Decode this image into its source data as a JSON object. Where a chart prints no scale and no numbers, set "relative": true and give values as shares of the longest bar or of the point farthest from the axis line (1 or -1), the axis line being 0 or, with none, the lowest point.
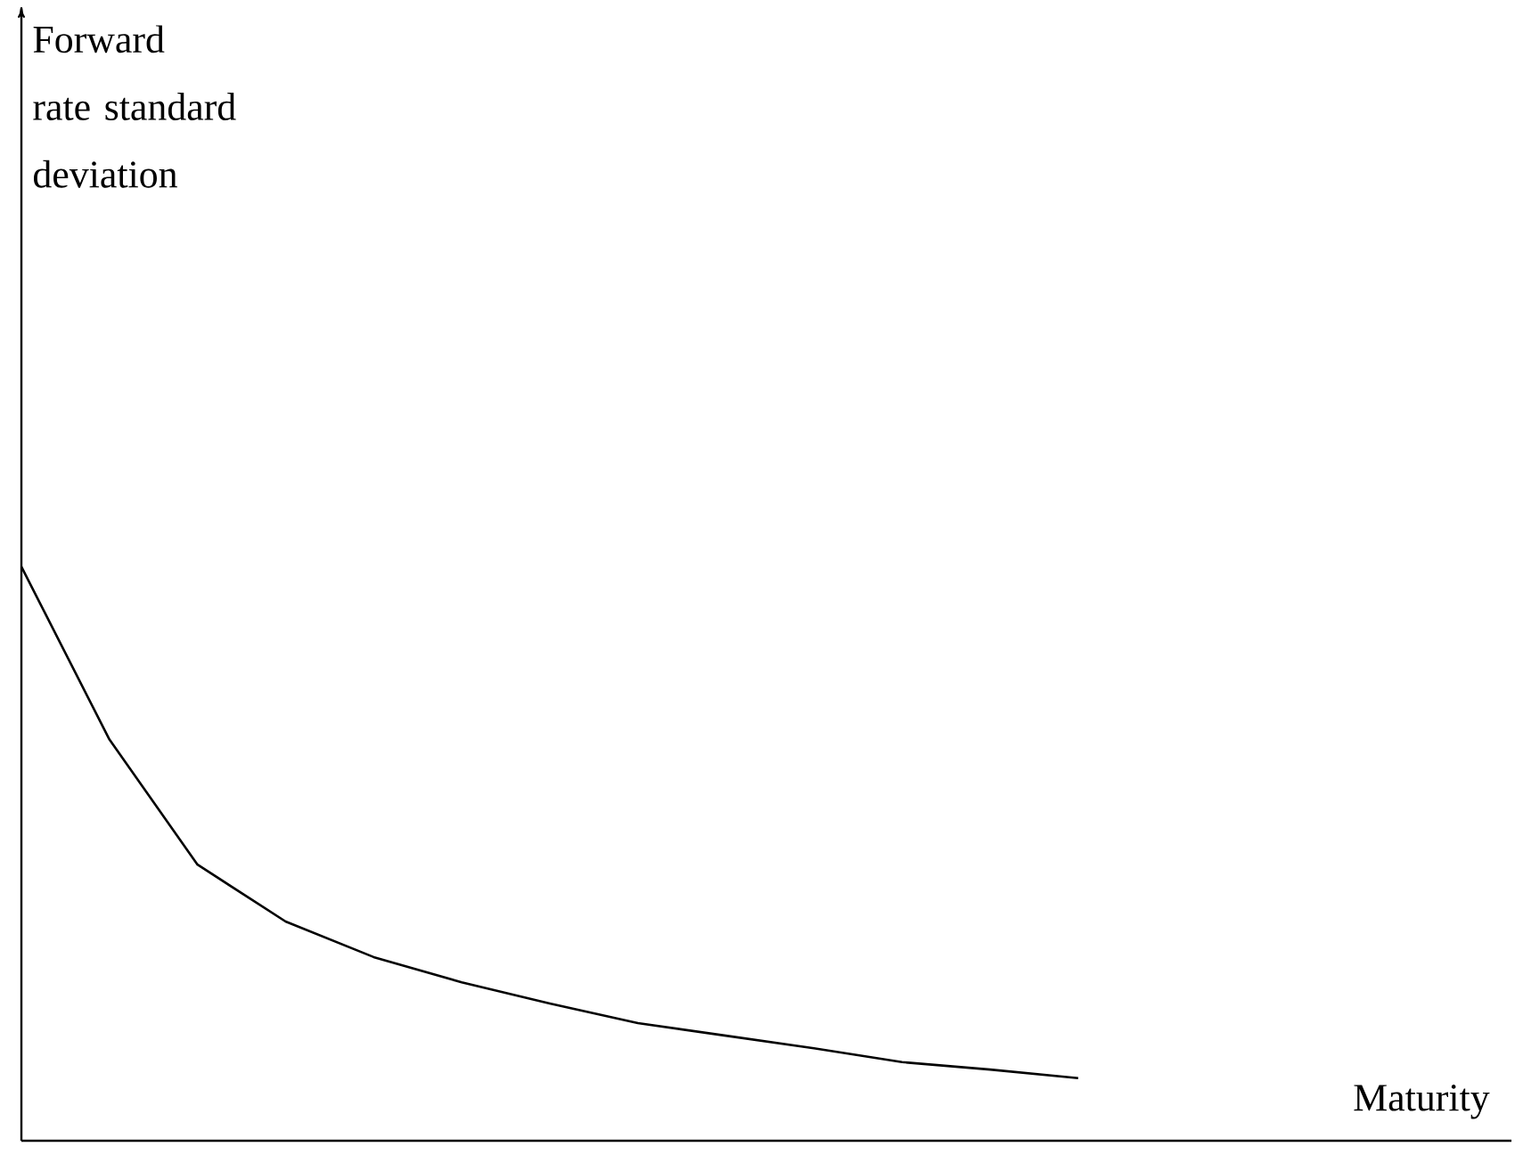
{
  "chart_data": {
    "type": "line",
    "relative": true,
    "annotations": [
      "Forward rate standard deviation",
      "Maturity"
    ],
    "categories": [
      null,
      null,
      null,
      null,
      null,
      null,
      null,
      null,
      null,
      null,
      null,
      null,
      null
    ],
    "series": [
      {
        "color": "#000000",
        "values": [
          1,
          0.699,
          0.481,
          0.382,
          0.32,
          0.276,
          0.239,
          0.205,
          0.183,
          0.161,
          0.137,
          0.124,
          0.109
        ]
      }
    ]
  }
}
